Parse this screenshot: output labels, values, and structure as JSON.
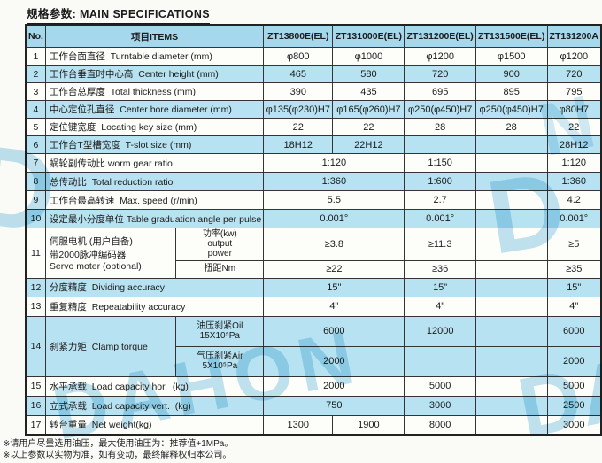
{
  "title": "规格参数: MAIN SPECIFICATIONS",
  "watermark": {
    "fragments": [
      "D",
      "DAHON",
      "D",
      "DA",
      "N"
    ]
  },
  "notes": [
    "※请用户尽量选用油压，最大使用油压为：推荐值+1MPa。",
    "※以上参数以实物为准，如有变动，最终解释权归本公司。"
  ],
  "table": {
    "header": {
      "no": "No.",
      "items": "项目ITEMS",
      "models": [
        "ZT13800E(EL)",
        "ZT131000E(EL)",
        "ZT131200E(EL)",
        "ZT131500E(EL)",
        "ZT131200A"
      ]
    },
    "rows": [
      {
        "no": "1",
        "label": "工作台面直径  Turntable diameter (mm)",
        "shade": "w",
        "cells": [
          {
            "t": "φ800"
          },
          {
            "t": "φ1000"
          },
          {
            "t": "φ1200"
          },
          {
            "t": "φ1500"
          },
          {
            "t": "φ1200"
          }
        ]
      },
      {
        "no": "2",
        "label": "工作台垂直时中心高  Center height (mm)",
        "shade": "b",
        "cells": [
          {
            "t": "465"
          },
          {
            "t": "580"
          },
          {
            "t": "720"
          },
          {
            "t": "900"
          },
          {
            "t": "720"
          }
        ]
      },
      {
        "no": "3",
        "label": "工作台总厚度  Total thickness (mm)",
        "shade": "w",
        "cells": [
          {
            "t": "390"
          },
          {
            "t": "435"
          },
          {
            "t": "695"
          },
          {
            "t": "895"
          },
          {
            "t": "795"
          }
        ]
      },
      {
        "no": "4",
        "label": "中心定位孔直径  Center bore diameter (mm)",
        "shade": "b",
        "cells": [
          {
            "t": "φ135(φ230)H7"
          },
          {
            "t": "φ165(φ260)H7"
          },
          {
            "t": "φ250(φ450)H7"
          },
          {
            "t": "φ250(φ450)H7"
          },
          {
            "t": "φ80H7"
          }
        ]
      },
      {
        "no": "5",
        "label": "定位键宽度  Locating key size (mm)",
        "shade": "w",
        "cells": [
          {
            "t": "22"
          },
          {
            "t": "22"
          },
          {
            "t": "28"
          },
          {
            "t": "28"
          },
          {
            "t": "22"
          }
        ]
      },
      {
        "no": "6",
        "label": "工作台T型槽宽度  T-slot size (mm)",
        "shade": "b",
        "cells": [
          {
            "t": "18H12"
          },
          {
            "t": "22H12"
          },
          {
            "t": ""
          },
          {
            "t": ""
          },
          {
            "t": "28H12"
          }
        ]
      },
      {
        "no": "7",
        "label": "蜗轮副传动比 worm gear ratio",
        "shade": "w",
        "cells": [
          {
            "t": "1:120",
            "s": 2
          },
          {
            "t": "1:150"
          },
          {
            "t": ""
          },
          {
            "t": "1:120"
          }
        ]
      },
      {
        "no": "8",
        "label": "总传动比  Total reduction ratio",
        "shade": "b",
        "cells": [
          {
            "t": "1:360",
            "s": 2
          },
          {
            "t": "1:600"
          },
          {
            "t": ""
          },
          {
            "t": "1:360"
          }
        ]
      },
      {
        "no": "9",
        "label": "工作台最高转速  Max. speed (r/min)",
        "shade": "w",
        "cells": [
          {
            "t": "5.5",
            "s": 2
          },
          {
            "t": "2.7"
          },
          {
            "t": ""
          },
          {
            "t": "4.2"
          }
        ]
      },
      {
        "no": "10",
        "label": "设定最小分度单位 Table graduation angle per pulse",
        "shade": "b",
        "cells": [
          {
            "t": "0.001°",
            "s": 2
          },
          {
            "t": "0.001°"
          },
          {
            "t": ""
          },
          {
            "t": "0.001°"
          }
        ]
      },
      {
        "no": "11",
        "rs": 2,
        "label": "伺服电机 (用户自备)\n带2000脉冲编码器\nServo moter (optional)",
        "sub": "功率(kw)\noutput\npower",
        "shade": "w",
        "cells": [
          {
            "t": "≥3.8",
            "s": 2
          },
          {
            "t": "≥11.3"
          },
          {
            "t": ""
          },
          {
            "t": "≥5"
          }
        ]
      },
      {
        "sub": "扭距Nm",
        "shade": "w",
        "cells": [
          {
            "t": "≥22",
            "s": 2
          },
          {
            "t": "≥36"
          },
          {
            "t": ""
          },
          {
            "t": "≥35"
          }
        ]
      },
      {
        "no": "12",
        "label": "分度精度  Dividing accuracy",
        "shade": "b",
        "cells": [
          {
            "t": "15\"",
            "s": 2
          },
          {
            "t": "15\""
          },
          {
            "t": ""
          },
          {
            "t": "15\""
          }
        ]
      },
      {
        "no": "13",
        "label": "重复精度  Repeatability accuracy",
        "shade": "w",
        "cells": [
          {
            "t": "4\"",
            "s": 2
          },
          {
            "t": "4\""
          },
          {
            "t": ""
          },
          {
            "t": "4\""
          }
        ]
      },
      {
        "no": "14",
        "rs": 2,
        "label": "刹紧力矩  Clamp torque",
        "sub": "油压刹紧Oil\n15X10⁵Pa",
        "shade": "b",
        "cells": [
          {
            "t": "6000",
            "s": 2
          },
          {
            "t": "12000"
          },
          {
            "t": ""
          },
          {
            "t": "6000"
          }
        ]
      },
      {
        "sub": "气压刹紧Air\n5X10⁵Pa",
        "shade": "b",
        "cells": [
          {
            "t": "2000",
            "s": 2
          },
          {
            "t": ""
          },
          {
            "t": ""
          },
          {
            "t": "2000"
          }
        ]
      },
      {
        "no": "15",
        "label": "水平承载  Load capacity hor.  (kg)",
        "shade": "w",
        "cells": [
          {
            "t": "2000",
            "s": 2
          },
          {
            "t": "5000"
          },
          {
            "t": ""
          },
          {
            "t": "5000"
          }
        ]
      },
      {
        "no": "16",
        "label": "立式承载  Load capacity vert.  (kg)",
        "shade": "b",
        "cells": [
          {
            "t": "750",
            "s": 2
          },
          {
            "t": "3000"
          },
          {
            "t": ""
          },
          {
            "t": "2500"
          }
        ]
      },
      {
        "no": "17",
        "label": "转台重量  Net weight(kg)",
        "shade": "w",
        "cells": [
          {
            "t": "1300"
          },
          {
            "t": "1900"
          },
          {
            "t": "8000"
          },
          {
            "t": ""
          },
          {
            "t": "3000"
          }
        ]
      }
    ]
  }
}
